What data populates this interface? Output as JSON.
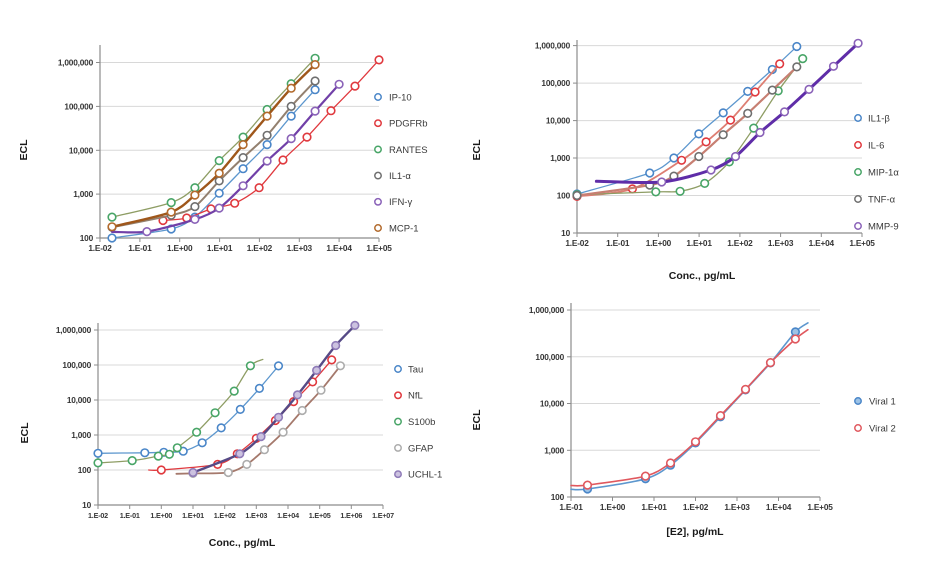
{
  "figure": {
    "background": "#FFFFFF",
    "grid_color": "#D8D8D8",
    "axis_color": "#8C8C8C",
    "tick_text_color": "#363636",
    "legend_text_color": "#3A3A3A"
  },
  "chart_data": [
    {
      "id": "top-left",
      "type": "line",
      "title": "",
      "xlabel": "",
      "ylabel": "ECL",
      "x_scale": "log",
      "y_scale": "log",
      "grid": "horizontal",
      "legend_position": "right",
      "x_tick_labels": [
        "1.E-02",
        "1.E-01",
        "1.E+00",
        "1.E+01",
        "1.E+02",
        "1.E+03",
        "1.E+04",
        "1.E+05"
      ],
      "x_tick_exps": [
        -2,
        -1,
        0,
        1,
        2,
        3,
        4,
        5
      ],
      "y_tick_labels": [
        "1,000,000",
        "100,000",
        "10,000",
        "1,000",
        "100"
      ],
      "y_tick_exps": [
        6,
        5,
        4,
        3,
        2
      ],
      "x_range_exp": [
        -2,
        5
      ],
      "y_range_exp": [
        2,
        6.4
      ],
      "series": [
        {
          "name": "IP-10",
          "marker_color": "#4A86C8",
          "line_color": "#5D97CE",
          "line_width": 1.3,
          "marker_fill": "#FFFFFF",
          "x": [
            0.02,
            0.61,
            2.4,
            9.8,
            39,
            156,
            625,
            2500
          ],
          "y": [
            100,
            160,
            300,
            1050,
            3800,
            13500,
            60000,
            240000
          ]
        },
        {
          "name": "PDGFRb",
          "marker_color": "#E0393E",
          "line_color": "#E0393E",
          "line_width": 1.3,
          "marker_fill": "#FFFFFF",
          "x": [
            0.38,
            1.5,
            6.1,
            24,
            98,
            391,
            1563,
            6250,
            25000,
            100000
          ],
          "y": [
            250,
            285,
            460,
            620,
            1400,
            6000,
            20000,
            80000,
            290000,
            1150000
          ]
        },
        {
          "name": "RANTES",
          "marker_color": "#48A567",
          "line_color": "#8E9D64",
          "line_width": 1.3,
          "marker_fill": "#FFFFFF",
          "x": [
            0.02,
            0.61,
            2.4,
            9.8,
            39,
            156,
            625,
            2500
          ],
          "y": [
            300,
            640,
            1400,
            5800,
            20000,
            85000,
            330000,
            1250000
          ]
        },
        {
          "name": "IL1-α",
          "marker_color": "#6F6F6F",
          "line_color": "#93806F",
          "line_width": 2.0,
          "marker_fill": "#FFFFFF",
          "x": [
            0.02,
            0.61,
            2.4,
            9.8,
            39,
            156,
            625,
            2500
          ],
          "y": [
            175,
            330,
            520,
            2000,
            6800,
            22000,
            100000,
            380000
          ]
        },
        {
          "name": "IFN-γ",
          "marker_color": "#8A62B8",
          "line_color": "#7140A8",
          "line_width": 2.2,
          "marker_fill": "#FFFFFF",
          "x": [
            0.15,
            2.4,
            9.8,
            39,
            156,
            625,
            2500,
            10000
          ],
          "y": [
            140,
            265,
            480,
            1550,
            5700,
            18500,
            78000,
            320000
          ],
          "line_prefix": [
            [
              0.02,
              138
            ]
          ]
        },
        {
          "name": "MCP-1",
          "marker_color": "#B26A2C",
          "line_color": "#9F571B",
          "line_width": 2.4,
          "marker_fill": "#FFFFFF",
          "x": [
            0.02,
            0.61,
            2.4,
            9.8,
            39,
            156,
            625,
            2500
          ],
          "y": [
            180,
            390,
            950,
            3000,
            13500,
            60000,
            260000,
            900000
          ]
        }
      ]
    },
    {
      "id": "top-right",
      "type": "line",
      "title": "",
      "xlabel": "Conc., pg/mL",
      "ylabel": "ECL",
      "x_scale": "log",
      "y_scale": "log",
      "grid": "horizontal",
      "legend_position": "right",
      "x_tick_labels": [
        "1.E-02",
        "1.E-01",
        "1.E+00",
        "1.E+01",
        "1.E+02",
        "1.E+03",
        "1.E+04",
        "1.E+05"
      ],
      "x_tick_exps": [
        -2,
        -1,
        0,
        1,
        2,
        3,
        4,
        5
      ],
      "y_tick_labels": [
        "1,000,000",
        "100,000",
        "10,000",
        "1,000",
        "100",
        "10"
      ],
      "y_tick_exps": [
        6,
        5,
        4,
        3,
        2,
        1
      ],
      "x_range_exp": [
        -2,
        5
      ],
      "y_range_exp": [
        1,
        6.15
      ],
      "series": [
        {
          "name": "IL1-β",
          "marker_color": "#4A86C8",
          "line_color": "#5D97CE",
          "line_width": 1.3,
          "marker_fill": "#FFFFFF",
          "x": [
            0.01,
            0.61,
            2.4,
            9.8,
            39,
            156,
            625,
            2500
          ],
          "y": [
            110,
            400,
            1000,
            4400,
            16000,
            60000,
            230000,
            950000
          ]
        },
        {
          "name": "IL-6",
          "marker_color": "#E0393E",
          "line_color": "#DD7E72",
          "line_width": 1.8,
          "marker_fill": "#FFFFFF",
          "x": [
            0.01,
            0.23,
            3.7,
            14.8,
            59,
            237,
            950
          ],
          "y": [
            95,
            150,
            870,
            2700,
            10300,
            58000,
            325000
          ]
        },
        {
          "name": "MIP-1α",
          "marker_color": "#48A567",
          "line_color": "#8E9D64",
          "line_width": 1.3,
          "marker_fill": "#FFFFFF",
          "x": [
            0.01,
            0.86,
            3.4,
            13.7,
            55,
            219,
            875,
            3500
          ],
          "y": [
            105,
            125,
            130,
            210,
            790,
            6300,
            62000,
            450000
          ]
        },
        {
          "name": "TNF-α",
          "marker_color": "#6F6F6F",
          "line_color": "#C77F72",
          "line_width": 2.2,
          "marker_fill": "#FFFFFF",
          "x": [
            0.01,
            0.61,
            2.4,
            9.8,
            39,
            156,
            625,
            2500
          ],
          "y": [
            100,
            190,
            330,
            1100,
            4200,
            15500,
            65000,
            270000
          ]
        },
        {
          "name": "MMP-9",
          "marker_color": "#8A62B8",
          "line_color": "#5F2DA8",
          "line_width": 3.0,
          "marker_fill": "#FFFFFF",
          "x": [
            1.2,
            19.5,
            78,
            312,
            1250,
            5000,
            20000,
            80000
          ],
          "y": [
            230,
            480,
            1100,
            4800,
            17000,
            68000,
            280000,
            1150000
          ],
          "line_prefix": [
            [
              0.03,
              240
            ]
          ]
        }
      ]
    },
    {
      "id": "bottom-left",
      "type": "line",
      "title": "",
      "xlabel": "Conc., pg/mL",
      "ylabel": "ECL",
      "x_scale": "log",
      "y_scale": "log",
      "grid": "horizontal",
      "legend_position": "right",
      "x_tick_labels": [
        "1.E-02",
        "1.E-01",
        "1.E+00",
        "1.E+01",
        "1.E+02",
        "1.E+03",
        "1.E+04",
        "1.E+05",
        "1.E+06",
        "1.E+07"
      ],
      "x_tick_exps": [
        -2,
        -1,
        0,
        1,
        2,
        3,
        4,
        5,
        6,
        7
      ],
      "y_tick_labels": [
        "1,000,000",
        "100,000",
        "10,000",
        "1,000",
        "100",
        "10"
      ],
      "y_tick_exps": [
        6,
        5,
        4,
        3,
        2,
        1
      ],
      "x_range_exp": [
        -2,
        7
      ],
      "y_range_exp": [
        1,
        6.2
      ],
      "series": [
        {
          "name": "Tau",
          "marker_color": "#4A86C8",
          "line_color": "#5D97CE",
          "line_width": 1.3,
          "marker_fill": "#FFFFFF",
          "x": [
            0.01,
            0.3,
            1.2,
            4.9,
            19.5,
            78,
            312,
            1250,
            5000
          ],
          "y": [
            300,
            310,
            320,
            345,
            600,
            1600,
            5400,
            21500,
            94000
          ]
        },
        {
          "name": "NfL",
          "marker_color": "#E0393E",
          "line_color": "#E0393E",
          "line_width": 1.3,
          "marker_fill": "#FFFFFF",
          "x": [
            1,
            60,
            250,
            1000,
            4000,
            15000,
            60000,
            240000
          ],
          "y": [
            100,
            145,
            290,
            800,
            2600,
            9000,
            33000,
            140000
          ],
          "line_prefix": [
            [
              0.4,
              100
            ]
          ]
        },
        {
          "name": "S100b",
          "marker_color": "#48A567",
          "line_color": "#8E9D64",
          "line_width": 1.3,
          "marker_fill": "#FFFFFF",
          "x": [
            0.01,
            0.12,
            0.8,
            1.8,
            3.2,
            13,
            50,
            200,
            650
          ],
          "y": [
            160,
            185,
            250,
            280,
            430,
            1200,
            4300,
            18000,
            95000
          ],
          "line_suffix": [
            [
              1600,
              145000
            ]
          ]
        },
        {
          "name": "GFAP",
          "marker_color": "#ACACAC",
          "line_color": "#A5796C",
          "line_width": 1.8,
          "marker_fill": "#FFFFFF",
          "x": [
            10,
            130,
            500,
            1800,
            7000,
            28000,
            110000,
            450000
          ],
          "y": [
            80,
            85,
            145,
            380,
            1200,
            5000,
            19000,
            95000
          ],
          "line_prefix": [
            [
              3,
              78
            ]
          ]
        },
        {
          "name": "UCHL-1",
          "marker_color": "#8F7BB8",
          "line_color": "#564A86",
          "line_width": 2.4,
          "marker_fill": "#CCC2E0",
          "x": [
            10,
            300,
            1400,
            5000,
            20000,
            80000,
            320000,
            1300000
          ],
          "y": [
            85,
            290,
            900,
            3200,
            14000,
            70000,
            360000,
            1350000
          ]
        }
      ]
    },
    {
      "id": "bottom-right",
      "type": "line",
      "title": "",
      "xlabel": "[E2], pg/mL",
      "ylabel": "ECL",
      "x_scale": "log",
      "y_scale": "log",
      "grid": "horizontal",
      "legend_position": "right",
      "x_tick_labels": [
        "1.E-01",
        "1.E+00",
        "1.E+01",
        "1.E+02",
        "1.E+03",
        "1.E+04",
        "1.E+05"
      ],
      "x_tick_exps": [
        -1,
        0,
        1,
        2,
        3,
        4,
        5
      ],
      "y_tick_labels": [
        "1,000,000",
        "100,000",
        "10,000",
        "1,000",
        "100"
      ],
      "y_tick_exps": [
        6,
        5,
        4,
        3,
        2
      ],
      "x_range_exp": [
        -1,
        5
      ],
      "y_range_exp": [
        2,
        6.15
      ],
      "series": [
        {
          "name": "Viral 1",
          "marker_color": "#4A86C8",
          "line_color": "#5D97CE",
          "line_width": 1.6,
          "marker_fill": "#9DC3E6",
          "x": [
            0.25,
            6.25,
            25,
            100,
            400,
            1600,
            6400,
            25600
          ],
          "y": [
            148,
            245,
            480,
            1440,
            5200,
            19500,
            74000,
            340000
          ],
          "line_prefix": [
            [
              0.1,
              146
            ]
          ],
          "line_suffix": [
            [
              51000,
              530000
            ]
          ]
        },
        {
          "name": "Viral 2",
          "marker_color": "#E0585E",
          "line_color": "#E0585E",
          "line_width": 1.6,
          "marker_fill": "#FFFFFF",
          "x": [
            0.25,
            6.25,
            25,
            100,
            400,
            1600,
            6400,
            25600
          ],
          "y": [
            180,
            280,
            535,
            1520,
            5500,
            20000,
            75000,
            240000
          ],
          "line_prefix": [
            [
              0.1,
              176
            ]
          ],
          "line_suffix": [
            [
              51000,
              380000
            ]
          ]
        }
      ]
    }
  ]
}
